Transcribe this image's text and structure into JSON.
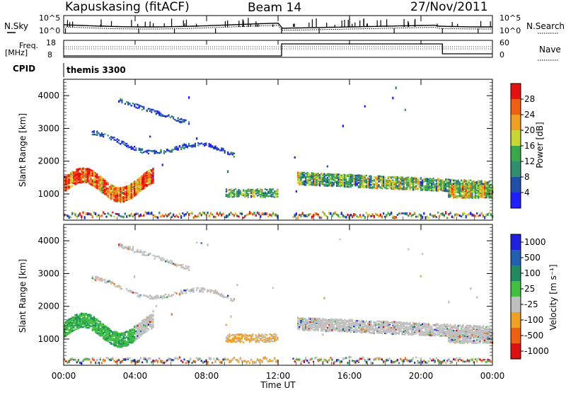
{
  "header": {
    "station": "Kapuskasing (fitACF)",
    "beam": "Beam 14",
    "date": "27/Nov/2011"
  },
  "nsky_panel": {
    "left_label": "N.Sky",
    "right_label": "N.Search",
    "left_ticks": [
      "10^5",
      "10^0"
    ],
    "right_ticks": [
      "10^5",
      "10^0"
    ]
  },
  "freq_panel": {
    "left_label_1": "Freq.",
    "left_label_2": "[MHz]",
    "right_label": "Nave",
    "left_ticks": [
      "18",
      "8"
    ],
    "right_ticks": [
      "60",
      "0"
    ]
  },
  "cpid": {
    "label": "CPID",
    "value": "themis 3300"
  },
  "chart_data": [
    {
      "type": "heatmap",
      "name": "power",
      "ylabel": "Slant Range [km]",
      "colorbar_label": "Power [dB]",
      "ylim": [
        200,
        4500
      ],
      "yticks": [
        1000,
        2000,
        3000,
        4000
      ],
      "colorbar_ticks": [
        "4",
        "8",
        "12",
        "16",
        "20",
        "24",
        "28"
      ],
      "colors": [
        "#1f1fff",
        "#1f4fa8",
        "#2f8f6f",
        "#38a848",
        "#c8d830",
        "#f0a020",
        "#f06010",
        "#e81010"
      ]
    },
    {
      "type": "heatmap",
      "name": "velocity",
      "ylabel": "Slant Range [km]",
      "colorbar_label": "Velocity [m s⁻¹]",
      "ylim": [
        200,
        4500
      ],
      "yticks": [
        1000,
        2000,
        3000,
        4000
      ],
      "colorbar_ticks": [
        "1000",
        "500",
        "100",
        "25",
        "-25",
        "-100",
        "-500",
        "-1000"
      ],
      "colors": [
        "#2020e0",
        "#2060b0",
        "#208a60",
        "#40c040",
        "#c0c0c0",
        "#f0a020",
        "#f06010",
        "#e01010"
      ]
    }
  ],
  "time_axis": {
    "xlabel": "Time UT",
    "ticks": [
      "00:00",
      "04:00",
      "08:00",
      "12:00",
      "16:00",
      "20:00",
      "00:00"
    ]
  }
}
